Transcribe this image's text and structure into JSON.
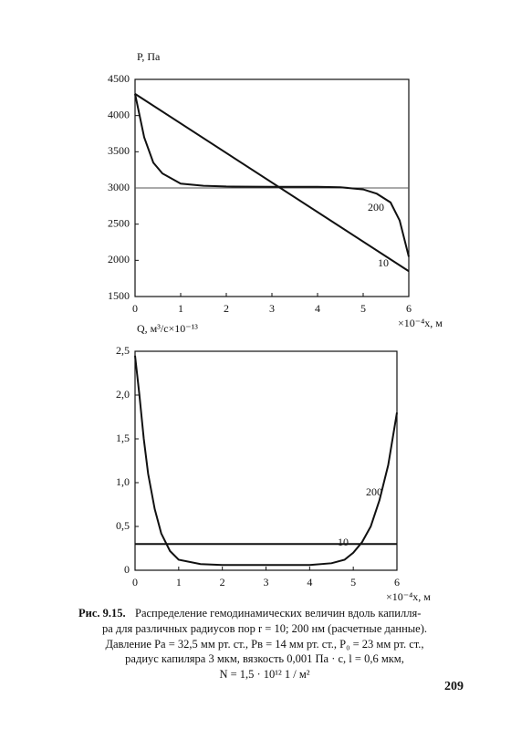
{
  "chart_data": [
    {
      "type": "line",
      "y_label": "P, Па",
      "x_label": "×10⁻⁴x, м",
      "xlim": [
        0,
        6
      ],
      "xticks": [
        0,
        1,
        2,
        3,
        4,
        5,
        6
      ],
      "ylim": [
        1500,
        4500
      ],
      "yticks": [
        1500,
        2000,
        2500,
        3000,
        3500,
        4000,
        4500
      ],
      "hlines": [
        3000
      ],
      "color": "#111111",
      "series": [
        {
          "name": "10",
          "x": [
            0,
            6
          ],
          "values": [
            4300,
            1850
          ]
        },
        {
          "name": "200",
          "x": [
            0,
            0.2,
            0.4,
            0.6,
            1,
            1.5,
            2,
            3,
            4,
            4.5,
            5,
            5.3,
            5.6,
            5.8,
            6
          ],
          "values": [
            4300,
            3700,
            3350,
            3200,
            3060,
            3030,
            3020,
            3015,
            3015,
            3010,
            2980,
            2920,
            2800,
            2550,
            2050
          ]
        }
      ]
    },
    {
      "type": "line",
      "y_label": "Q, м³/с×10⁻¹³",
      "x_label": "×10⁻⁴x, м",
      "xlim": [
        0,
        6
      ],
      "xticks": [
        0,
        1,
        2,
        3,
        4,
        5,
        6
      ],
      "ylim": [
        0,
        2.5
      ],
      "yticks": [
        0,
        {
          "value": 0.5,
          "label": "0,5"
        },
        {
          "value": 1,
          "label": "1,0"
        },
        {
          "value": 1.5,
          "label": "1,5"
        },
        {
          "value": 2,
          "label": "2,0"
        },
        {
          "value": 2.5,
          "label": "2,5"
        }
      ],
      "color": "#111111",
      "series": [
        {
          "name": "10",
          "x": [
            0,
            6
          ],
          "values": [
            0.3,
            0.3
          ]
        },
        {
          "name": "200",
          "x": [
            0,
            0.1,
            0.2,
            0.3,
            0.45,
            0.6,
            0.8,
            1,
            1.5,
            2,
            3,
            4,
            4.5,
            4.8,
            5,
            5.2,
            5.4,
            5.6,
            5.8,
            6
          ],
          "values": [
            2.45,
            2.0,
            1.5,
            1.1,
            0.7,
            0.42,
            0.22,
            0.12,
            0.07,
            0.06,
            0.06,
            0.06,
            0.08,
            0.12,
            0.2,
            0.32,
            0.5,
            0.8,
            1.2,
            1.8
          ]
        }
      ]
    }
  ],
  "caption": {
    "label": "Рис. 9.15.",
    "lines": [
      "Распределение гемодинамических величин вдоль капилля-",
      "ра для различных радиусов пор r = 10; 200 нм (расчетные данные).",
      "Давление Pа = 32,5 мм рт. ст., Pв = 14 мм рт. ст., P₀ = 23 мм рт. ст.,",
      "радиус капиляра 3 мкм, вязкость 0,001 Па · с, l = 0,6 мкм,",
      "N = 1,5 · 10¹² 1 / м²"
    ]
  },
  "page_number": "209"
}
